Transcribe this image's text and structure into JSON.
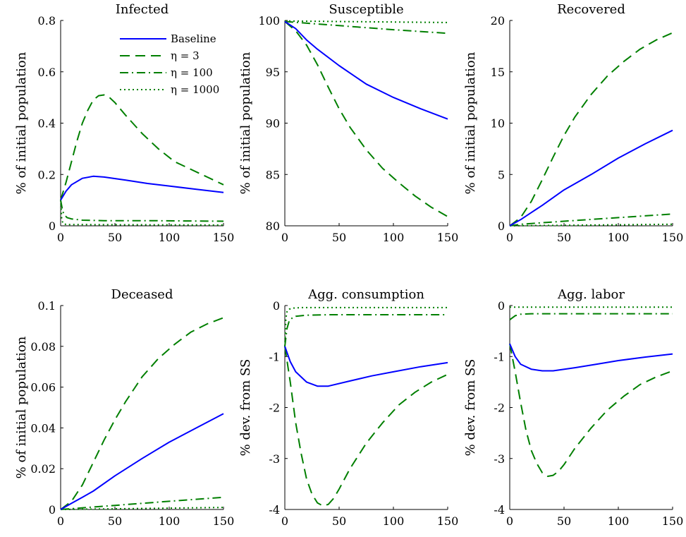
{
  "styles": {
    "baseline": {
      "color": "#0000ff",
      "dash": "",
      "width": 2
    },
    "eta3": {
      "color": "#007f00",
      "dash": "14 8",
      "width": 2
    },
    "eta100": {
      "color": "#007f00",
      "dash": "12 5 2 5",
      "width": 2
    },
    "eta1000": {
      "color": "#007f00",
      "dash": "2 4",
      "width": 2
    }
  },
  "legend": {
    "entries": [
      {
        "key": "baseline",
        "label": "Baseline"
      },
      {
        "key": "eta3",
        "label": "η = 3"
      },
      {
        "key": "eta100",
        "label": "η = 100"
      },
      {
        "key": "eta1000",
        "label": "η = 1000"
      }
    ]
  },
  "chart_data": [
    {
      "type": "line",
      "title": "Infected",
      "ylabel": "% of initial population",
      "xlim": [
        0,
        150
      ],
      "ylim": [
        0,
        0.8
      ],
      "xticks": [
        0,
        50,
        100,
        150
      ],
      "xtick_labels": [
        "0",
        "50",
        "100",
        "150"
      ],
      "yticks": [
        0,
        0.2,
        0.4,
        0.6,
        0.8
      ],
      "ytick_labels": [
        "0",
        "0.2",
        "0.4",
        "0.6",
        "0.8"
      ],
      "legend": "top-right",
      "series": [
        {
          "key": "baseline",
          "name": "Baseline",
          "x": [
            0,
            5,
            10,
            20,
            30,
            40,
            60,
            80,
            100,
            125,
            150
          ],
          "y": [
            0.1,
            0.135,
            0.16,
            0.185,
            0.193,
            0.19,
            0.178,
            0.165,
            0.155,
            0.142,
            0.13
          ]
        },
        {
          "key": "eta3",
          "name": "η = 3",
          "x": [
            0,
            5,
            10,
            15,
            20,
            25,
            30,
            35,
            40,
            45,
            50,
            60,
            75,
            90,
            105,
            120,
            135,
            150
          ],
          "y": [
            0.1,
            0.17,
            0.25,
            0.33,
            0.4,
            0.45,
            0.49,
            0.507,
            0.51,
            0.5,
            0.48,
            0.43,
            0.36,
            0.3,
            0.25,
            0.22,
            0.19,
            0.16
          ]
        },
        {
          "key": "eta100",
          "name": "η = 100",
          "x": [
            0,
            2,
            4,
            6,
            10,
            20,
            40,
            80,
            150
          ],
          "y": [
            0.1,
            0.055,
            0.04,
            0.032,
            0.027,
            0.022,
            0.02,
            0.02,
            0.018
          ]
        },
        {
          "key": "eta1000",
          "name": "η = 1000",
          "x": [
            0,
            1,
            2,
            5,
            150
          ],
          "y": [
            0.1,
            0.03,
            0.01,
            0.005,
            0.003
          ]
        }
      ]
    },
    {
      "type": "line",
      "title": "Susceptible",
      "ylabel": "% of initial population",
      "xlim": [
        0,
        150
      ],
      "ylim": [
        80,
        100
      ],
      "xticks": [
        0,
        50,
        100,
        150
      ],
      "xtick_labels": [
        "0",
        "50",
        "100",
        "150"
      ],
      "yticks": [
        80,
        85,
        90,
        95,
        100
      ],
      "ytick_labels": [
        "80",
        "85",
        "90",
        "95",
        "100"
      ],
      "series": [
        {
          "key": "baseline",
          "x": [
            0,
            10,
            20,
            30,
            50,
            75,
            100,
            125,
            150
          ],
          "y": [
            99.9,
            99.2,
            98.1,
            97.2,
            95.6,
            93.8,
            92.5,
            91.4,
            90.4
          ]
        },
        {
          "key": "eta3",
          "x": [
            0,
            10,
            20,
            30,
            40,
            50,
            60,
            75,
            90,
            105,
            120,
            135,
            150
          ],
          "y": [
            99.9,
            99.0,
            97.6,
            95.7,
            93.5,
            91.4,
            89.6,
            87.4,
            85.6,
            84.2,
            82.9,
            81.8,
            80.9
          ]
        },
        {
          "key": "eta100",
          "x": [
            0,
            50,
            100,
            150
          ],
          "y": [
            99.9,
            99.5,
            99.1,
            98.75
          ]
        },
        {
          "key": "eta1000",
          "x": [
            0,
            50,
            100,
            150
          ],
          "y": [
            99.95,
            99.9,
            99.85,
            99.8
          ]
        }
      ]
    },
    {
      "type": "line",
      "title": "Recovered",
      "ylabel": "% of initial population",
      "xlim": [
        0,
        150
      ],
      "ylim": [
        0,
        20
      ],
      "xticks": [
        0,
        50,
        100,
        150
      ],
      "xtick_labels": [
        "0",
        "50",
        "100",
        "150"
      ],
      "yticks": [
        0,
        5,
        10,
        15,
        20
      ],
      "ytick_labels": [
        "0",
        "5",
        "10",
        "15",
        "20"
      ],
      "series": [
        {
          "key": "baseline",
          "x": [
            0,
            10,
            20,
            30,
            50,
            75,
            100,
            125,
            150
          ],
          "y": [
            0,
            0.6,
            1.3,
            2.0,
            3.5,
            5.0,
            6.6,
            8.0,
            9.3
          ]
        },
        {
          "key": "eta3",
          "x": [
            0,
            10,
            20,
            30,
            40,
            50,
            60,
            75,
            90,
            105,
            120,
            135,
            150
          ],
          "y": [
            0,
            0.8,
            2.4,
            4.5,
            6.7,
            8.8,
            10.6,
            12.8,
            14.6,
            16.0,
            17.2,
            18.1,
            18.8
          ]
        },
        {
          "key": "eta100",
          "x": [
            0,
            10,
            50,
            100,
            150
          ],
          "y": [
            0,
            0.15,
            0.45,
            0.8,
            1.15
          ]
        },
        {
          "key": "eta1000",
          "x": [
            0,
            150
          ],
          "y": [
            0,
            0.15
          ]
        }
      ]
    },
    {
      "type": "line",
      "title": "Deceased",
      "ylabel": "% of initial population",
      "xlim": [
        0,
        150
      ],
      "ylim": [
        0,
        0.1
      ],
      "xticks": [
        0,
        50,
        100,
        150
      ],
      "xtick_labels": [
        "0",
        "50",
        "100",
        "150"
      ],
      "yticks": [
        0,
        0.02,
        0.04,
        0.06,
        0.08,
        0.1
      ],
      "ytick_labels": [
        "0",
        "0.02",
        "0.04",
        "0.06",
        "0.08",
        "0.1"
      ],
      "series": [
        {
          "key": "baseline",
          "x": [
            0,
            10,
            20,
            30,
            50,
            75,
            100,
            125,
            150
          ],
          "y": [
            0,
            0.003,
            0.006,
            0.009,
            0.0165,
            0.025,
            0.033,
            0.04,
            0.047
          ]
        },
        {
          "key": "eta3",
          "x": [
            0,
            10,
            20,
            30,
            40,
            50,
            60,
            75,
            90,
            105,
            120,
            135,
            150
          ],
          "y": [
            0,
            0.004,
            0.012,
            0.023,
            0.034,
            0.044,
            0.053,
            0.065,
            0.074,
            0.081,
            0.087,
            0.091,
            0.094
          ]
        },
        {
          "key": "eta100",
          "x": [
            0,
            50,
            100,
            150
          ],
          "y": [
            0,
            0.002,
            0.004,
            0.006
          ]
        },
        {
          "key": "eta1000",
          "x": [
            0,
            150
          ],
          "y": [
            0,
            0.001
          ]
        }
      ]
    },
    {
      "type": "line",
      "title": "Agg. consumption",
      "ylabel": "% dev. from SS",
      "xlim": [
        0,
        150
      ],
      "ylim": [
        -4,
        0
      ],
      "xticks": [
        0,
        50,
        100,
        150
      ],
      "xtick_labels": [
        "0",
        "50",
        "100",
        "150"
      ],
      "yticks": [
        -4,
        -3,
        -2,
        -1,
        0
      ],
      "ytick_labels": [
        "-4",
        "-3",
        "-2",
        "-1",
        "0"
      ],
      "series": [
        {
          "key": "baseline",
          "x": [
            0,
            5,
            10,
            20,
            30,
            40,
            60,
            80,
            100,
            125,
            150
          ],
          "y": [
            -0.8,
            -1.1,
            -1.3,
            -1.5,
            -1.58,
            -1.58,
            -1.48,
            -1.38,
            -1.3,
            -1.2,
            -1.12
          ]
        },
        {
          "key": "eta3",
          "x": [
            0,
            5,
            10,
            15,
            20,
            25,
            30,
            35,
            40,
            45,
            50,
            60,
            75,
            90,
            105,
            120,
            135,
            150
          ],
          "y": [
            -0.8,
            -1.5,
            -2.3,
            -2.9,
            -3.4,
            -3.7,
            -3.87,
            -3.93,
            -3.9,
            -3.78,
            -3.6,
            -3.2,
            -2.7,
            -2.3,
            -1.95,
            -1.7,
            -1.5,
            -1.35
          ]
        },
        {
          "key": "eta100",
          "x": [
            0,
            2,
            4,
            7,
            10,
            20,
            40,
            80,
            150
          ],
          "y": [
            -0.8,
            -0.45,
            -0.3,
            -0.24,
            -0.21,
            -0.19,
            -0.18,
            -0.18,
            -0.18
          ]
        },
        {
          "key": "eta1000",
          "x": [
            0,
            1,
            2,
            4,
            8,
            15,
            150
          ],
          "y": [
            -0.8,
            -0.25,
            -0.12,
            -0.07,
            -0.05,
            -0.04,
            -0.04
          ]
        }
      ]
    },
    {
      "type": "line",
      "title": "Agg. labor",
      "ylabel": "% dev. from SS",
      "xlim": [
        0,
        150
      ],
      "ylim": [
        -4,
        0
      ],
      "xticks": [
        0,
        50,
        100,
        150
      ],
      "xtick_labels": [
        "0",
        "50",
        "100",
        "150"
      ],
      "yticks": [
        -4,
        -3,
        -2,
        -1,
        0
      ],
      "ytick_labels": [
        "-4",
        "-3",
        "-2",
        "-1",
        "0"
      ],
      "series": [
        {
          "key": "baseline",
          "x": [
            0,
            5,
            10,
            20,
            30,
            40,
            60,
            80,
            100,
            125,
            150
          ],
          "y": [
            -0.75,
            -1.0,
            -1.15,
            -1.25,
            -1.28,
            -1.28,
            -1.22,
            -1.15,
            -1.08,
            -1.01,
            -0.95
          ]
        },
        {
          "key": "eta3",
          "x": [
            0,
            5,
            10,
            15,
            20,
            25,
            30,
            35,
            40,
            45,
            50,
            60,
            75,
            90,
            105,
            120,
            135,
            150
          ],
          "y": [
            -0.75,
            -1.3,
            -1.9,
            -2.45,
            -2.85,
            -3.1,
            -3.28,
            -3.35,
            -3.33,
            -3.25,
            -3.12,
            -2.8,
            -2.4,
            -2.05,
            -1.78,
            -1.55,
            -1.4,
            -1.28
          ]
        },
        {
          "key": "eta100",
          "x": [
            0,
            5,
            10,
            20,
            40,
            80,
            150
          ],
          "y": [
            -0.28,
            -0.2,
            -0.17,
            -0.16,
            -0.16,
            -0.16,
            -0.16
          ]
        },
        {
          "key": "eta1000",
          "x": [
            0,
            150
          ],
          "y": [
            -0.03,
            -0.03
          ]
        }
      ]
    }
  ]
}
